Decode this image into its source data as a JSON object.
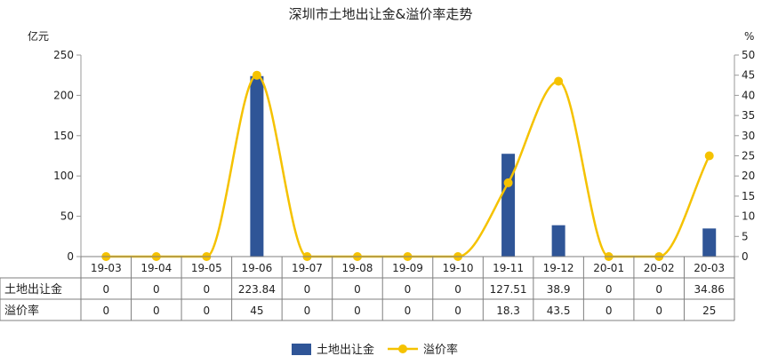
{
  "chart_data": {
    "type": "bar",
    "title": "深圳市土地出让金&溢价率走势",
    "categories": [
      "19-03",
      "19-04",
      "19-05",
      "19-06",
      "19-07",
      "19-08",
      "19-09",
      "19-10",
      "19-11",
      "19-12",
      "20-01",
      "20-02",
      "20-03"
    ],
    "y_left": {
      "unit": "亿元",
      "lim": [
        0,
        250
      ],
      "ticks": [
        "0",
        "50",
        "100",
        "150",
        "200",
        "250"
      ]
    },
    "y_right": {
      "unit": "%",
      "lim": [
        0,
        50
      ],
      "ticks": [
        "0",
        "5",
        "10",
        "15",
        "20",
        "25",
        "30",
        "35",
        "40",
        "45",
        "50"
      ]
    },
    "series": [
      {
        "name": "土地出让金",
        "type": "bar",
        "axis": "left",
        "color": "#2F5597",
        "values": [
          0,
          0,
          0,
          223.84,
          0,
          0,
          0,
          0,
          127.51,
          38.9,
          0,
          0,
          34.86
        ],
        "labels": [
          "0",
          "0",
          "0",
          "223.84",
          "0",
          "0",
          "0",
          "0",
          "127.51",
          "38.9",
          "0",
          "0",
          "34.86"
        ]
      },
      {
        "name": "溢价率",
        "type": "line",
        "smooth": true,
        "axis": "right",
        "color": "#F5C200",
        "values": [
          0,
          0,
          0,
          45,
          0,
          0,
          0,
          0,
          18.3,
          43.5,
          0,
          0,
          25
        ],
        "labels": [
          "0",
          "0",
          "0",
          "45",
          "0",
          "0",
          "0",
          "0",
          "18.3",
          "43.5",
          "0",
          "0",
          "25"
        ]
      }
    ],
    "legend": "bottom",
    "data_table": true,
    "grid": false
  }
}
